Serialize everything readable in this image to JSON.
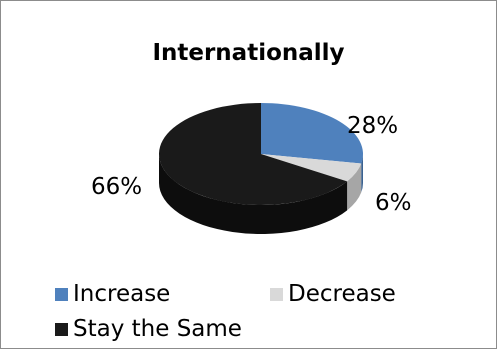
{
  "chart_data": {
    "type": "pie",
    "title": "Internationally",
    "categories": [
      "Increase",
      "Decrease",
      "Stay the Same"
    ],
    "values": [
      28,
      6,
      66
    ],
    "value_labels": [
      "28%",
      "6%",
      "66%"
    ],
    "colors": [
      "#4f81bd",
      "#d9d9d9",
      "#1a1a1a"
    ],
    "side_colors": [
      "#3a6291",
      "#a6a6a6",
      "#0d0d0d"
    ],
    "style": "3d",
    "legend_position": "bottom"
  }
}
